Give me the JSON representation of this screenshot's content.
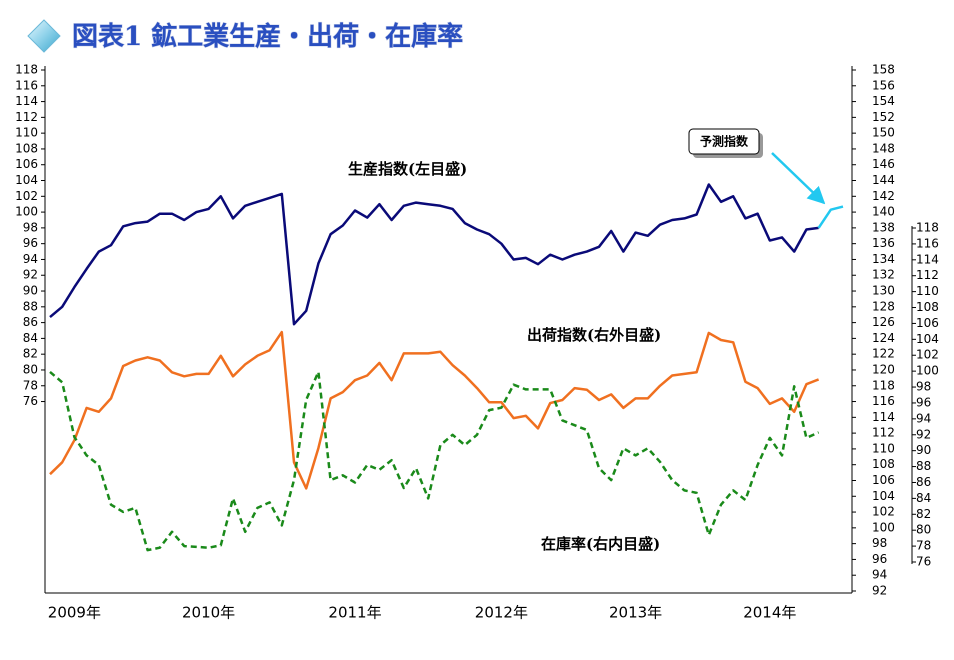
{
  "chart_data": {
    "type": "line",
    "title": "図表1 鉱工業生産・出荷・在庫率",
    "categories": [
      null,
      null,
      "2009年",
      null,
      null,
      null,
      null,
      null,
      null,
      null,
      null,
      null,
      null,
      "2010年",
      null,
      null,
      null,
      null,
      null,
      null,
      null,
      null,
      null,
      null,
      null,
      "2011年",
      null,
      null,
      null,
      null,
      null,
      null,
      null,
      null,
      null,
      null,
      null,
      "2012年",
      null,
      null,
      null,
      null,
      null,
      null,
      null,
      null,
      null,
      null,
      "2013年",
      null,
      null,
      null,
      null,
      null,
      null,
      null,
      null,
      null,
      null,
      "2014年",
      null,
      null,
      null,
      null,
      null,
      null
    ],
    "series": [
      {
        "name": "生産指数(左目盛)",
        "color": "#0a0a78",
        "axis": "y",
        "values": [
          86.7,
          88,
          90.5,
          92.8,
          95,
          95.8,
          98.2,
          98.6,
          98.8,
          99.8,
          99.8,
          99,
          100,
          100.4,
          102,
          99.2,
          100.8,
          101.3,
          101.8,
          102.3,
          85.8,
          87.5,
          93.5,
          97.2,
          98.3,
          100.2,
          99.3,
          101,
          99,
          100.8,
          101.2,
          101,
          100.8,
          100.4,
          98.6,
          97.8,
          97.2,
          96,
          94,
          94.2,
          93.4,
          94.6,
          94,
          94.6,
          95,
          95.6,
          97.6,
          95,
          97.4,
          97,
          98.4,
          99,
          99.2,
          99.7,
          103.5,
          101.3,
          102,
          99.2,
          99.8,
          96.4,
          96.8,
          95,
          97.8,
          98,
          null,
          null
        ]
      },
      {
        "name": "予測指数",
        "color": "#22c8f0",
        "axis": "y",
        "values": [
          null,
          null,
          null,
          null,
          null,
          null,
          null,
          null,
          null,
          null,
          null,
          null,
          null,
          null,
          null,
          null,
          null,
          null,
          null,
          null,
          null,
          null,
          null,
          null,
          null,
          null,
          null,
          null,
          null,
          null,
          null,
          null,
          null,
          null,
          null,
          null,
          null,
          null,
          null,
          null,
          null,
          null,
          null,
          null,
          null,
          null,
          null,
          null,
          null,
          null,
          null,
          null,
          null,
          null,
          null,
          null,
          null,
          null,
          null,
          null,
          null,
          null,
          null,
          98,
          100.3,
          100.7
        ]
      },
      {
        "name": "出荷指数(右外目盛)",
        "color": "#f07020",
        "axis": "y2",
        "values": [
          106.8,
          108.3,
          111.1,
          115.2,
          114.7,
          116.4,
          120.5,
          121.2,
          121.6,
          121.2,
          119.7,
          119.2,
          119.5,
          119.5,
          121.8,
          119.2,
          120.7,
          121.8,
          122.5,
          124.8,
          108.3,
          105,
          110.1,
          116.4,
          117.2,
          118.7,
          119.3,
          120.9,
          118.7,
          122.1,
          122.1,
          122.1,
          122.3,
          120.6,
          119.3,
          117.7,
          115.9,
          115.9,
          113.9,
          114.2,
          112.6,
          115.8,
          116.2,
          117.7,
          117.5,
          116.2,
          116.9,
          115.2,
          116.4,
          116.4,
          118,
          119.3,
          119.5,
          119.7,
          124.7,
          123.8,
          123.5,
          118.5,
          117.7,
          115.7,
          116.4,
          114.7,
          118.2,
          118.8,
          null,
          null
        ]
      },
      {
        "name": "在庫率(右内目盛)",
        "color": "#1a8a1a",
        "axis": "y3",
        "values": [
          99.9,
          98.6,
          91.7,
          89.4,
          88.2,
          83.2,
          82.3,
          82.8,
          77.5,
          77.8,
          79.8,
          78,
          77.9,
          77.8,
          78.1,
          84,
          79.8,
          82.8,
          83.5,
          80.6,
          86.3,
          96.4,
          99.9,
          86.3,
          86.9,
          86,
          88.2,
          87.6,
          88.8,
          85.3,
          87.8,
          84,
          90.7,
          92,
          90.7,
          92,
          95.1,
          95.4,
          98.3,
          97.7,
          97.7,
          97.7,
          93.8,
          93.2,
          92.6,
          87.8,
          86.3,
          90.3,
          89.4,
          90.3,
          88.6,
          86.3,
          85,
          84.7,
          79.4,
          83.2,
          85,
          83.8,
          88.2,
          91.6,
          89.4,
          98.1,
          91.6,
          92.3,
          null,
          null
        ]
      }
    ],
    "ylim": [
      52,
      118
    ],
    "yticks": [
      76,
      78,
      80,
      82,
      84,
      86,
      88,
      90,
      92,
      94,
      96,
      98,
      100,
      102,
      104,
      106,
      108,
      110,
      112,
      114,
      116,
      118
    ],
    "y2lim": [
      92,
      158
    ],
    "y2ticks": [
      92,
      94,
      96,
      98,
      100,
      102,
      104,
      106,
      108,
      110,
      112,
      114,
      116,
      118,
      120,
      122,
      124,
      126,
      128,
      130,
      132,
      134,
      136,
      138,
      140,
      142,
      144,
      146,
      148,
      150,
      152,
      154,
      156,
      158
    ],
    "y3lim": [
      76,
      118
    ],
    "y3ticks": [
      76,
      78,
      80,
      82,
      84,
      86,
      88,
      90,
      92,
      94,
      96,
      98,
      100,
      102,
      104,
      106,
      108,
      110,
      112,
      114,
      116,
      118
    ],
    "grid": false
  }
}
